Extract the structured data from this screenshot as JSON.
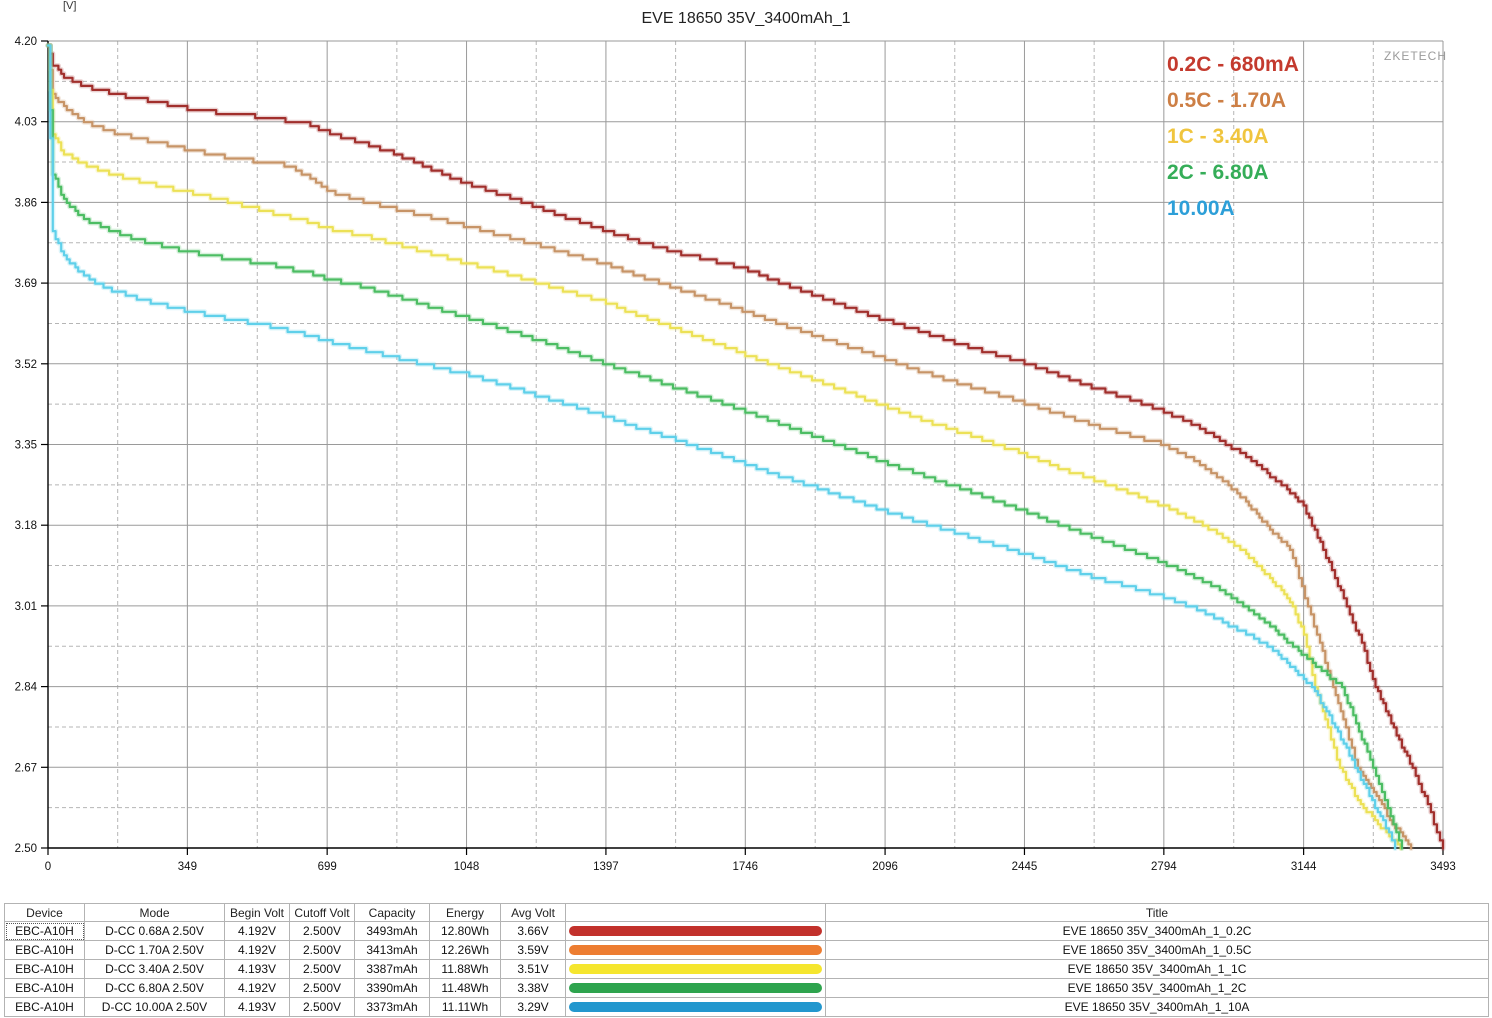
{
  "page": {
    "y_axis_unit_label": "[V]",
    "watermark": "ZKETECH"
  },
  "chart_data": {
    "type": "line",
    "title": "EVE 18650 35V_3400mAh_1",
    "x_ticks": [
      0,
      349,
      699,
      1048,
      1397,
      1746,
      2096,
      2445,
      2794,
      3144,
      3493
    ],
    "y_ticks": [
      "4.20",
      "4.03",
      "3.86",
      "3.69",
      "3.52",
      "3.35",
      "3.18",
      "3.01",
      "2.84",
      "2.67",
      "2.50"
    ],
    "xlim": [
      0,
      3493
    ],
    "ylim": [
      2.5,
      4.2
    ],
    "grid": "major-solid minor-dashed",
    "legend_position": "top-right",
    "series": [
      {
        "name": "0.2C - 680mA",
        "legend_color": "#c43a2e",
        "curve_color": "#a12f2c",
        "points": [
          [
            0,
            4.192
          ],
          [
            12,
            4.15
          ],
          [
            40,
            4.125
          ],
          [
            90,
            4.105
          ],
          [
            160,
            4.09
          ],
          [
            250,
            4.075
          ],
          [
            349,
            4.058
          ],
          [
            450,
            4.047
          ],
          [
            560,
            4.038
          ],
          [
            650,
            4.025
          ],
          [
            699,
            4.008
          ],
          [
            790,
            3.985
          ],
          [
            873,
            3.962
          ],
          [
            960,
            3.93
          ],
          [
            1048,
            3.9
          ],
          [
            1130,
            3.878
          ],
          [
            1220,
            3.852
          ],
          [
            1310,
            3.825
          ],
          [
            1397,
            3.8
          ],
          [
            1480,
            3.778
          ],
          [
            1572,
            3.755
          ],
          [
            1660,
            3.738
          ],
          [
            1746,
            3.72
          ],
          [
            1830,
            3.692
          ],
          [
            1920,
            3.665
          ],
          [
            2010,
            3.638
          ],
          [
            2096,
            3.612
          ],
          [
            2180,
            3.59
          ],
          [
            2270,
            3.565
          ],
          [
            2360,
            3.543
          ],
          [
            2445,
            3.522
          ],
          [
            2530,
            3.497
          ],
          [
            2620,
            3.47
          ],
          [
            2710,
            3.445
          ],
          [
            2794,
            3.42
          ],
          [
            2870,
            3.392
          ],
          [
            2934,
            3.36
          ],
          [
            3000,
            3.325
          ],
          [
            3060,
            3.285
          ],
          [
            3110,
            3.25
          ],
          [
            3144,
            3.22
          ],
          [
            3193,
            3.13
          ],
          [
            3252,
            3.01
          ],
          [
            3290,
            2.93
          ],
          [
            3324,
            2.84
          ],
          [
            3370,
            2.75
          ],
          [
            3417,
            2.67
          ],
          [
            3455,
            2.59
          ],
          [
            3493,
            2.5
          ]
        ]
      },
      {
        "name": "0.5C - 1.70A",
        "legend_color": "#cd7f45",
        "curve_color": "#c79467",
        "points": [
          [
            0,
            4.192
          ],
          [
            12,
            4.09
          ],
          [
            40,
            4.06
          ],
          [
            90,
            4.03
          ],
          [
            160,
            4.008
          ],
          [
            250,
            3.99
          ],
          [
            349,
            3.972
          ],
          [
            450,
            3.955
          ],
          [
            550,
            3.944
          ],
          [
            606,
            3.938
          ],
          [
            650,
            3.915
          ],
          [
            699,
            3.885
          ],
          [
            790,
            3.862
          ],
          [
            873,
            3.845
          ],
          [
            960,
            3.828
          ],
          [
            1048,
            3.81
          ],
          [
            1130,
            3.792
          ],
          [
            1220,
            3.772
          ],
          [
            1310,
            3.75
          ],
          [
            1397,
            3.73
          ],
          [
            1480,
            3.705
          ],
          [
            1572,
            3.68
          ],
          [
            1660,
            3.655
          ],
          [
            1746,
            3.63
          ],
          [
            1830,
            3.605
          ],
          [
            1920,
            3.58
          ],
          [
            2010,
            3.555
          ],
          [
            2096,
            3.53
          ],
          [
            2180,
            3.505
          ],
          [
            2270,
            3.482
          ],
          [
            2360,
            3.46
          ],
          [
            2445,
            3.438
          ],
          [
            2530,
            3.415
          ],
          [
            2620,
            3.39
          ],
          [
            2710,
            3.37
          ],
          [
            2794,
            3.35
          ],
          [
            2870,
            3.318
          ],
          [
            2934,
            3.28
          ],
          [
            3000,
            3.23
          ],
          [
            3060,
            3.17
          ],
          [
            3110,
            3.13
          ],
          [
            3155,
            3.01
          ],
          [
            3185,
            2.93
          ],
          [
            3218,
            2.84
          ],
          [
            3250,
            2.75
          ],
          [
            3280,
            2.67
          ],
          [
            3320,
            2.62
          ],
          [
            3360,
            2.56
          ],
          [
            3413,
            2.5
          ]
        ]
      },
      {
        "name": "1C - 3.40A",
        "legend_color": "#f0c53e",
        "curve_color": "#ece156",
        "points": [
          [
            0,
            4.192
          ],
          [
            12,
            4.0
          ],
          [
            40,
            3.965
          ],
          [
            90,
            3.94
          ],
          [
            160,
            3.92
          ],
          [
            250,
            3.9
          ],
          [
            349,
            3.882
          ],
          [
            450,
            3.862
          ],
          [
            550,
            3.84
          ],
          [
            650,
            3.82
          ],
          [
            699,
            3.806
          ],
          [
            790,
            3.79
          ],
          [
            873,
            3.772
          ],
          [
            960,
            3.752
          ],
          [
            1048,
            3.732
          ],
          [
            1130,
            3.715
          ],
          [
            1220,
            3.692
          ],
          [
            1310,
            3.67
          ],
          [
            1397,
            3.65
          ],
          [
            1480,
            3.622
          ],
          [
            1572,
            3.595
          ],
          [
            1660,
            3.568
          ],
          [
            1746,
            3.54
          ],
          [
            1830,
            3.513
          ],
          [
            1920,
            3.487
          ],
          [
            2010,
            3.458
          ],
          [
            2096,
            3.43
          ],
          [
            2180,
            3.405
          ],
          [
            2270,
            3.38
          ],
          [
            2360,
            3.355
          ],
          [
            2445,
            3.33
          ],
          [
            2530,
            3.302
          ],
          [
            2620,
            3.275
          ],
          [
            2710,
            3.248
          ],
          [
            2794,
            3.22
          ],
          [
            2870,
            3.19
          ],
          [
            2934,
            3.16
          ],
          [
            3000,
            3.12
          ],
          [
            3060,
            3.07
          ],
          [
            3110,
            3.02
          ],
          [
            3145,
            2.95
          ],
          [
            3173,
            2.84
          ],
          [
            3205,
            2.75
          ],
          [
            3235,
            2.67
          ],
          [
            3280,
            2.6
          ],
          [
            3330,
            2.55
          ],
          [
            3387,
            2.5
          ]
        ]
      },
      {
        "name": "2C - 6.80A",
        "legend_color": "#35ad58",
        "curve_color": "#4cbd63",
        "points": [
          [
            0,
            4.192
          ],
          [
            12,
            3.92
          ],
          [
            40,
            3.865
          ],
          [
            90,
            3.825
          ],
          [
            160,
            3.8
          ],
          [
            250,
            3.775
          ],
          [
            349,
            3.757
          ],
          [
            450,
            3.742
          ],
          [
            550,
            3.73
          ],
          [
            650,
            3.712
          ],
          [
            699,
            3.7
          ],
          [
            790,
            3.682
          ],
          [
            873,
            3.662
          ],
          [
            960,
            3.64
          ],
          [
            1048,
            3.618
          ],
          [
            1130,
            3.597
          ],
          [
            1220,
            3.572
          ],
          [
            1310,
            3.546
          ],
          [
            1397,
            3.52
          ],
          [
            1480,
            3.496
          ],
          [
            1572,
            3.47
          ],
          [
            1660,
            3.446
          ],
          [
            1746,
            3.42
          ],
          [
            1830,
            3.394
          ],
          [
            1920,
            3.368
          ],
          [
            2010,
            3.34
          ],
          [
            2096,
            3.312
          ],
          [
            2180,
            3.288
          ],
          [
            2270,
            3.262
          ],
          [
            2360,
            3.236
          ],
          [
            2445,
            3.21
          ],
          [
            2530,
            3.182
          ],
          [
            2620,
            3.155
          ],
          [
            2710,
            3.128
          ],
          [
            2794,
            3.1
          ],
          [
            2870,
            3.072
          ],
          [
            2934,
            3.045
          ],
          [
            3000,
            3.008
          ],
          [
            3060,
            2.968
          ],
          [
            3110,
            2.93
          ],
          [
            3160,
            2.895
          ],
          [
            3240,
            2.84
          ],
          [
            3318,
            2.67
          ],
          [
            3355,
            2.58
          ],
          [
            3390,
            2.5
          ]
        ]
      },
      {
        "name": "10.00A",
        "legend_color": "#2d9fd8",
        "curve_color": "#5fd0ea",
        "points": [
          [
            0,
            4.192
          ],
          [
            12,
            3.8
          ],
          [
            40,
            3.745
          ],
          [
            90,
            3.705
          ],
          [
            160,
            3.675
          ],
          [
            250,
            3.652
          ],
          [
            349,
            3.632
          ],
          [
            450,
            3.615
          ],
          [
            550,
            3.6
          ],
          [
            650,
            3.58
          ],
          [
            699,
            3.568
          ],
          [
            790,
            3.55
          ],
          [
            873,
            3.532
          ],
          [
            960,
            3.515
          ],
          [
            1048,
            3.498
          ],
          [
            1130,
            3.478
          ],
          [
            1220,
            3.455
          ],
          [
            1310,
            3.432
          ],
          [
            1397,
            3.41
          ],
          [
            1480,
            3.385
          ],
          [
            1572,
            3.36
          ],
          [
            1660,
            3.335
          ],
          [
            1746,
            3.31
          ],
          [
            1830,
            3.285
          ],
          [
            1920,
            3.26
          ],
          [
            2010,
            3.235
          ],
          [
            2096,
            3.21
          ],
          [
            2180,
            3.188
          ],
          [
            2270,
            3.165
          ],
          [
            2360,
            3.142
          ],
          [
            2445,
            3.12
          ],
          [
            2530,
            3.095
          ],
          [
            2620,
            3.07
          ],
          [
            2710,
            3.05
          ],
          [
            2794,
            3.03
          ],
          [
            2870,
            3.005
          ],
          [
            2934,
            2.98
          ],
          [
            3000,
            2.952
          ],
          [
            3060,
            2.922
          ],
          [
            3110,
            2.885
          ],
          [
            3165,
            2.84
          ],
          [
            3223,
            2.755
          ],
          [
            3280,
            2.66
          ],
          [
            3323,
            2.585
          ],
          [
            3350,
            2.545
          ],
          [
            3373,
            2.5
          ]
        ]
      }
    ]
  },
  "table": {
    "headers": [
      "Device",
      "Mode",
      "Begin Volt",
      "Cutoff Volt",
      "Capacity",
      "Energy",
      "Avg Volt",
      "",
      "Title"
    ],
    "rows": [
      {
        "device": "EBC-A10H",
        "mode": "D-CC 0.68A 2.50V",
        "begin_volt": "4.192V",
        "cutoff_volt": "2.500V",
        "capacity": "3493mAh",
        "energy": "12.80Wh",
        "avg_volt": "3.66V",
        "bar_color": "#c2312b",
        "title": "EVE 18650 35V_3400mAh_1_0.2C"
      },
      {
        "device": "EBC-A10H",
        "mode": "D-CC 1.70A 2.50V",
        "begin_volt": "4.192V",
        "cutoff_volt": "2.500V",
        "capacity": "3413mAh",
        "energy": "12.26Wh",
        "avg_volt": "3.59V",
        "bar_color": "#ed7d31",
        "title": "EVE 18650 35V_3400mAh_1_0.5C"
      },
      {
        "device": "EBC-A10H",
        "mode": "D-CC 3.40A 2.50V",
        "begin_volt": "4.193V",
        "cutoff_volt": "2.500V",
        "capacity": "3387mAh",
        "energy": "11.88Wh",
        "avg_volt": "3.51V",
        "bar_color": "#f5e62e",
        "title": "EVE 18650 35V_3400mAh_1_1C"
      },
      {
        "device": "EBC-A10H",
        "mode": "D-CC 6.80A 2.50V",
        "begin_volt": "4.192V",
        "cutoff_volt": "2.500V",
        "capacity": "3390mAh",
        "energy": "11.48Wh",
        "avg_volt": "3.38V",
        "bar_color": "#2ea44e",
        "title": "EVE 18650 35V_3400mAh_1_2C"
      },
      {
        "device": "EBC-A10H",
        "mode": "D-CC 10.00A 2.50V",
        "begin_volt": "4.193V",
        "cutoff_volt": "2.500V",
        "capacity": "3373mAh",
        "energy": "11.11Wh",
        "avg_volt": "3.29V",
        "bar_color": "#2297ce",
        "title": "EVE 18650 35V_3400mAh_1_10A"
      }
    ]
  }
}
